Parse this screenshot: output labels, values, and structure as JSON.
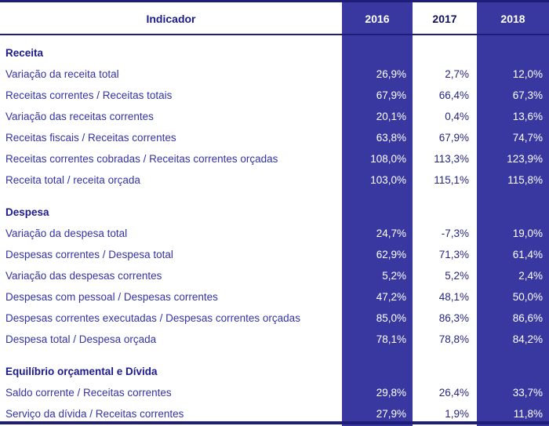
{
  "table": {
    "header": {
      "indicator_label": "Indicador",
      "years": [
        "2016",
        "2017",
        "2018"
      ]
    },
    "sections": [
      {
        "title": "Receita",
        "rows": [
          {
            "label": "Variação da receita total",
            "values": [
              "26,9%",
              "2,7%",
              "12,0%"
            ]
          },
          {
            "label": "Receitas correntes / Receitas totais",
            "values": [
              "67,9%",
              "66,4%",
              "67,3%"
            ]
          },
          {
            "label": "Variação das receitas correntes",
            "values": [
              "20,1%",
              "0,4%",
              "13,6%"
            ]
          },
          {
            "label": "Receitas fiscais / Receitas correntes",
            "values": [
              "63,8%",
              "67,9%",
              "74,7%"
            ]
          },
          {
            "label": "Receitas correntes cobradas / Receitas correntes orçadas",
            "values": [
              "108,0%",
              "113,3%",
              "123,9%"
            ]
          },
          {
            "label": "Receita total / receita orçada",
            "values": [
              "103,0%",
              "115,1%",
              "115,8%"
            ]
          }
        ]
      },
      {
        "title": "Despesa",
        "rows": [
          {
            "label": "Variação da despesa total",
            "values": [
              "24,7%",
              "-7,3%",
              "19,0%"
            ]
          },
          {
            "label": "Despesas correntes / Despesa total",
            "values": [
              "62,9%",
              "71,3%",
              "61,4%"
            ]
          },
          {
            "label": "Variação das despesas correntes",
            "values": [
              "5,2%",
              "5,2%",
              "2,4%"
            ]
          },
          {
            "label": "Despesas com pessoal / Despesas correntes",
            "values": [
              "47,2%",
              "48,1%",
              "50,0%"
            ]
          },
          {
            "label": "Despesas correntes executadas / Despesas correntes orçadas",
            "values": [
              "85,0%",
              "86,3%",
              "86,6%"
            ]
          },
          {
            "label": "Despesa total / Despesa orçada",
            "values": [
              "78,1%",
              "78,8%",
              "84,2%"
            ]
          }
        ]
      },
      {
        "title": "Equilíbrio orçamental e Dívida",
        "rows": [
          {
            "label": "Saldo corrente / Receitas correntes",
            "values": [
              "29,8%",
              "26,4%",
              "33,7%"
            ]
          },
          {
            "label": "Serviço da dívida / Receitas correntes",
            "values": [
              "27,9%",
              "1,9%",
              "11,8%"
            ]
          }
        ]
      }
    ],
    "colors": {
      "column_fill": "#3838a0",
      "rule_navy": "#1e1e78",
      "label_text": "#3333a6",
      "heading_text": "#1b1b8c",
      "value_on_blue": "#ffffff",
      "value_on_white": "#26267e"
    }
  },
  "chart_data": {
    "type": "table",
    "title": "Indicador",
    "columns": [
      "Indicador",
      "2016",
      "2017",
      "2018"
    ],
    "sections": [
      {
        "name": "Receita",
        "rows": [
          [
            "Variação da receita total",
            "26,9%",
            "2,7%",
            "12,0%"
          ],
          [
            "Receitas correntes / Receitas totais",
            "67,9%",
            "66,4%",
            "67,3%"
          ],
          [
            "Variação das receitas correntes",
            "20,1%",
            "0,4%",
            "13,6%"
          ],
          [
            "Receitas fiscais / Receitas correntes",
            "63,8%",
            "67,9%",
            "74,7%"
          ],
          [
            "Receitas correntes cobradas / Receitas correntes orçadas",
            "108,0%",
            "113,3%",
            "123,9%"
          ],
          [
            "Receita total / receita orçada",
            "103,0%",
            "115,1%",
            "115,8%"
          ]
        ]
      },
      {
        "name": "Despesa",
        "rows": [
          [
            "Variação da despesa total",
            "24,7%",
            "-7,3%",
            "19,0%"
          ],
          [
            "Despesas correntes / Despesa total",
            "62,9%",
            "71,3%",
            "61,4%"
          ],
          [
            "Variação das despesas correntes",
            "5,2%",
            "5,2%",
            "2,4%"
          ],
          [
            "Despesas com pessoal / Despesas correntes",
            "47,2%",
            "48,1%",
            "50,0%"
          ],
          [
            "Despesas correntes executadas / Despesas correntes orçadas",
            "85,0%",
            "86,3%",
            "86,6%"
          ],
          [
            "Despesa total / Despesa orçada",
            "78,1%",
            "78,8%",
            "84,2%"
          ]
        ]
      },
      {
        "name": "Equilíbrio orçamental e Dívida",
        "rows": [
          [
            "Saldo corrente / Receitas correntes",
            "29,8%",
            "26,4%",
            "33,7%"
          ],
          [
            "Serviço da dívida / Receitas correntes",
            "27,9%",
            "1,9%",
            "11,8%"
          ]
        ]
      }
    ]
  }
}
